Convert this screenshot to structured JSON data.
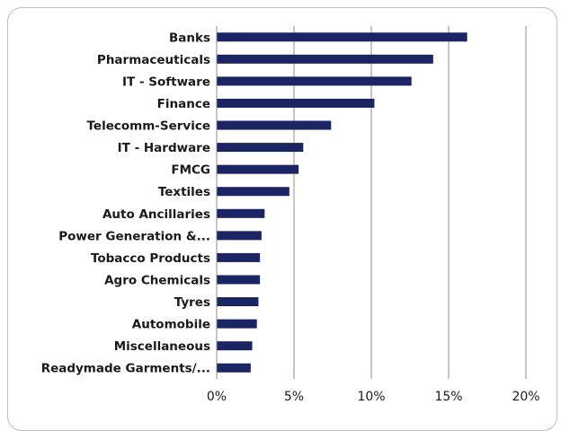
{
  "colors": {
    "bar": "#1b2563",
    "grid": "#8c8c8c",
    "axis": "#8c8c8c",
    "frame": "#bdbdbd"
  },
  "chart_data": {
    "type": "bar",
    "orientation": "horizontal",
    "title": "",
    "xlabel": "",
    "ylabel": "",
    "categories": [
      "Banks",
      "Pharmaceuticals",
      "IT - Software",
      "Finance",
      "Telecomm-Service",
      "IT - Hardware",
      "FMCG",
      "Textiles",
      "Auto Ancillaries",
      "Power Generation &...",
      "Tobacco Products",
      "Agro Chemicals",
      "Tyres",
      "Automobile",
      "Miscellaneous",
      "Readymade Garments/..."
    ],
    "values": [
      16.2,
      14.0,
      12.6,
      10.2,
      7.4,
      5.6,
      5.3,
      4.7,
      3.1,
      2.9,
      2.8,
      2.8,
      2.7,
      2.6,
      2.3,
      2.2
    ],
    "value_unit": "percent",
    "xlim": [
      0,
      20
    ],
    "xticks": [
      0,
      5,
      10,
      15,
      20
    ],
    "xtick_labels": [
      "0%",
      "5%",
      "10%",
      "15%",
      "20%"
    ],
    "grid": "vertical",
    "legend": "none"
  }
}
